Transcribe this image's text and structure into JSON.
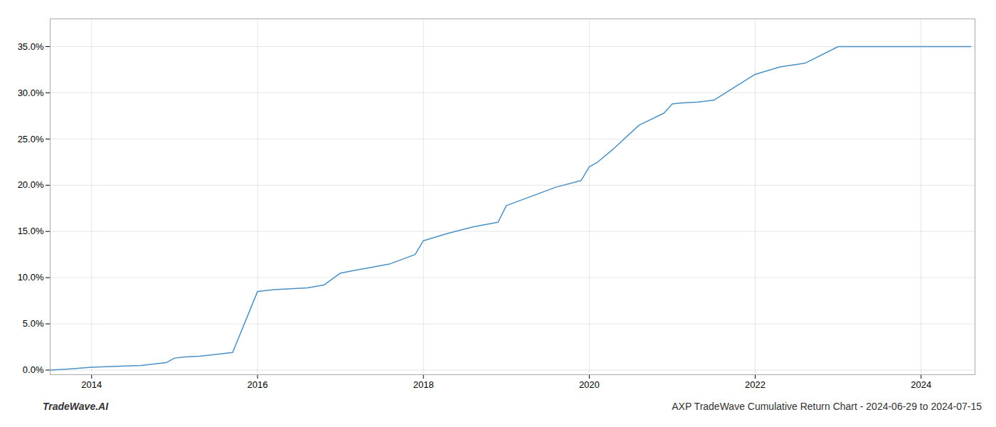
{
  "chart_data": {
    "type": "line",
    "title": "AXP TradeWave Cumulative Return Chart - 2024-06-29 to 2024-07-15",
    "annotations": [
      "TradeWave.AI"
    ],
    "x": [
      2013.5,
      2013.7,
      2014.0,
      2014.3,
      2014.6,
      2014.9,
      2015.0,
      2015.1,
      2015.3,
      2015.5,
      2015.7,
      2016.0,
      2016.1,
      2016.2,
      2016.4,
      2016.6,
      2016.8,
      2017.0,
      2017.3,
      2017.6,
      2017.9,
      2018.0,
      2018.3,
      2018.6,
      2018.9,
      2019.0,
      2019.3,
      2019.6,
      2019.9,
      2020.0,
      2020.1,
      2020.3,
      2020.6,
      2020.9,
      2021.0,
      2021.1,
      2021.3,
      2021.5,
      2022.0,
      2022.3,
      2022.6,
      2023.0,
      2023.3,
      2023.6,
      2024.0,
      2024.3,
      2024.6
    ],
    "values": [
      0.0,
      0.001,
      0.003,
      0.004,
      0.005,
      0.008,
      0.013,
      0.014,
      0.015,
      0.017,
      0.019,
      0.085,
      0.086,
      0.087,
      0.088,
      0.089,
      0.092,
      0.105,
      0.11,
      0.115,
      0.125,
      0.14,
      0.148,
      0.155,
      0.16,
      0.178,
      0.188,
      0.198,
      0.205,
      0.22,
      0.225,
      0.24,
      0.265,
      0.278,
      0.288,
      0.289,
      0.29,
      0.292,
      0.32,
      0.328,
      0.332,
      0.35,
      0.35,
      0.35,
      0.35,
      0.35,
      0.35
    ],
    "color": "#4a90c4",
    "xlim": [
      2013.5,
      2024.65
    ],
    "ylim": [
      -0.005,
      0.38
    ],
    "xticks": [
      2014,
      2016,
      2018,
      2020,
      2022,
      2024
    ],
    "yticks": [
      {
        "value": 0.0,
        "label": "0.0%"
      },
      {
        "value": 0.05,
        "label": "5.0%"
      },
      {
        "value": 0.1,
        "label": "10.0%"
      },
      {
        "value": 0.15,
        "label": "15.0%"
      },
      {
        "value": 0.2,
        "label": "20.0%"
      },
      {
        "value": 0.25,
        "label": "25.0%"
      },
      {
        "value": 0.3,
        "label": "30.0%"
      },
      {
        "value": 0.35,
        "label": "35.0%"
      }
    ],
    "grid": true
  }
}
